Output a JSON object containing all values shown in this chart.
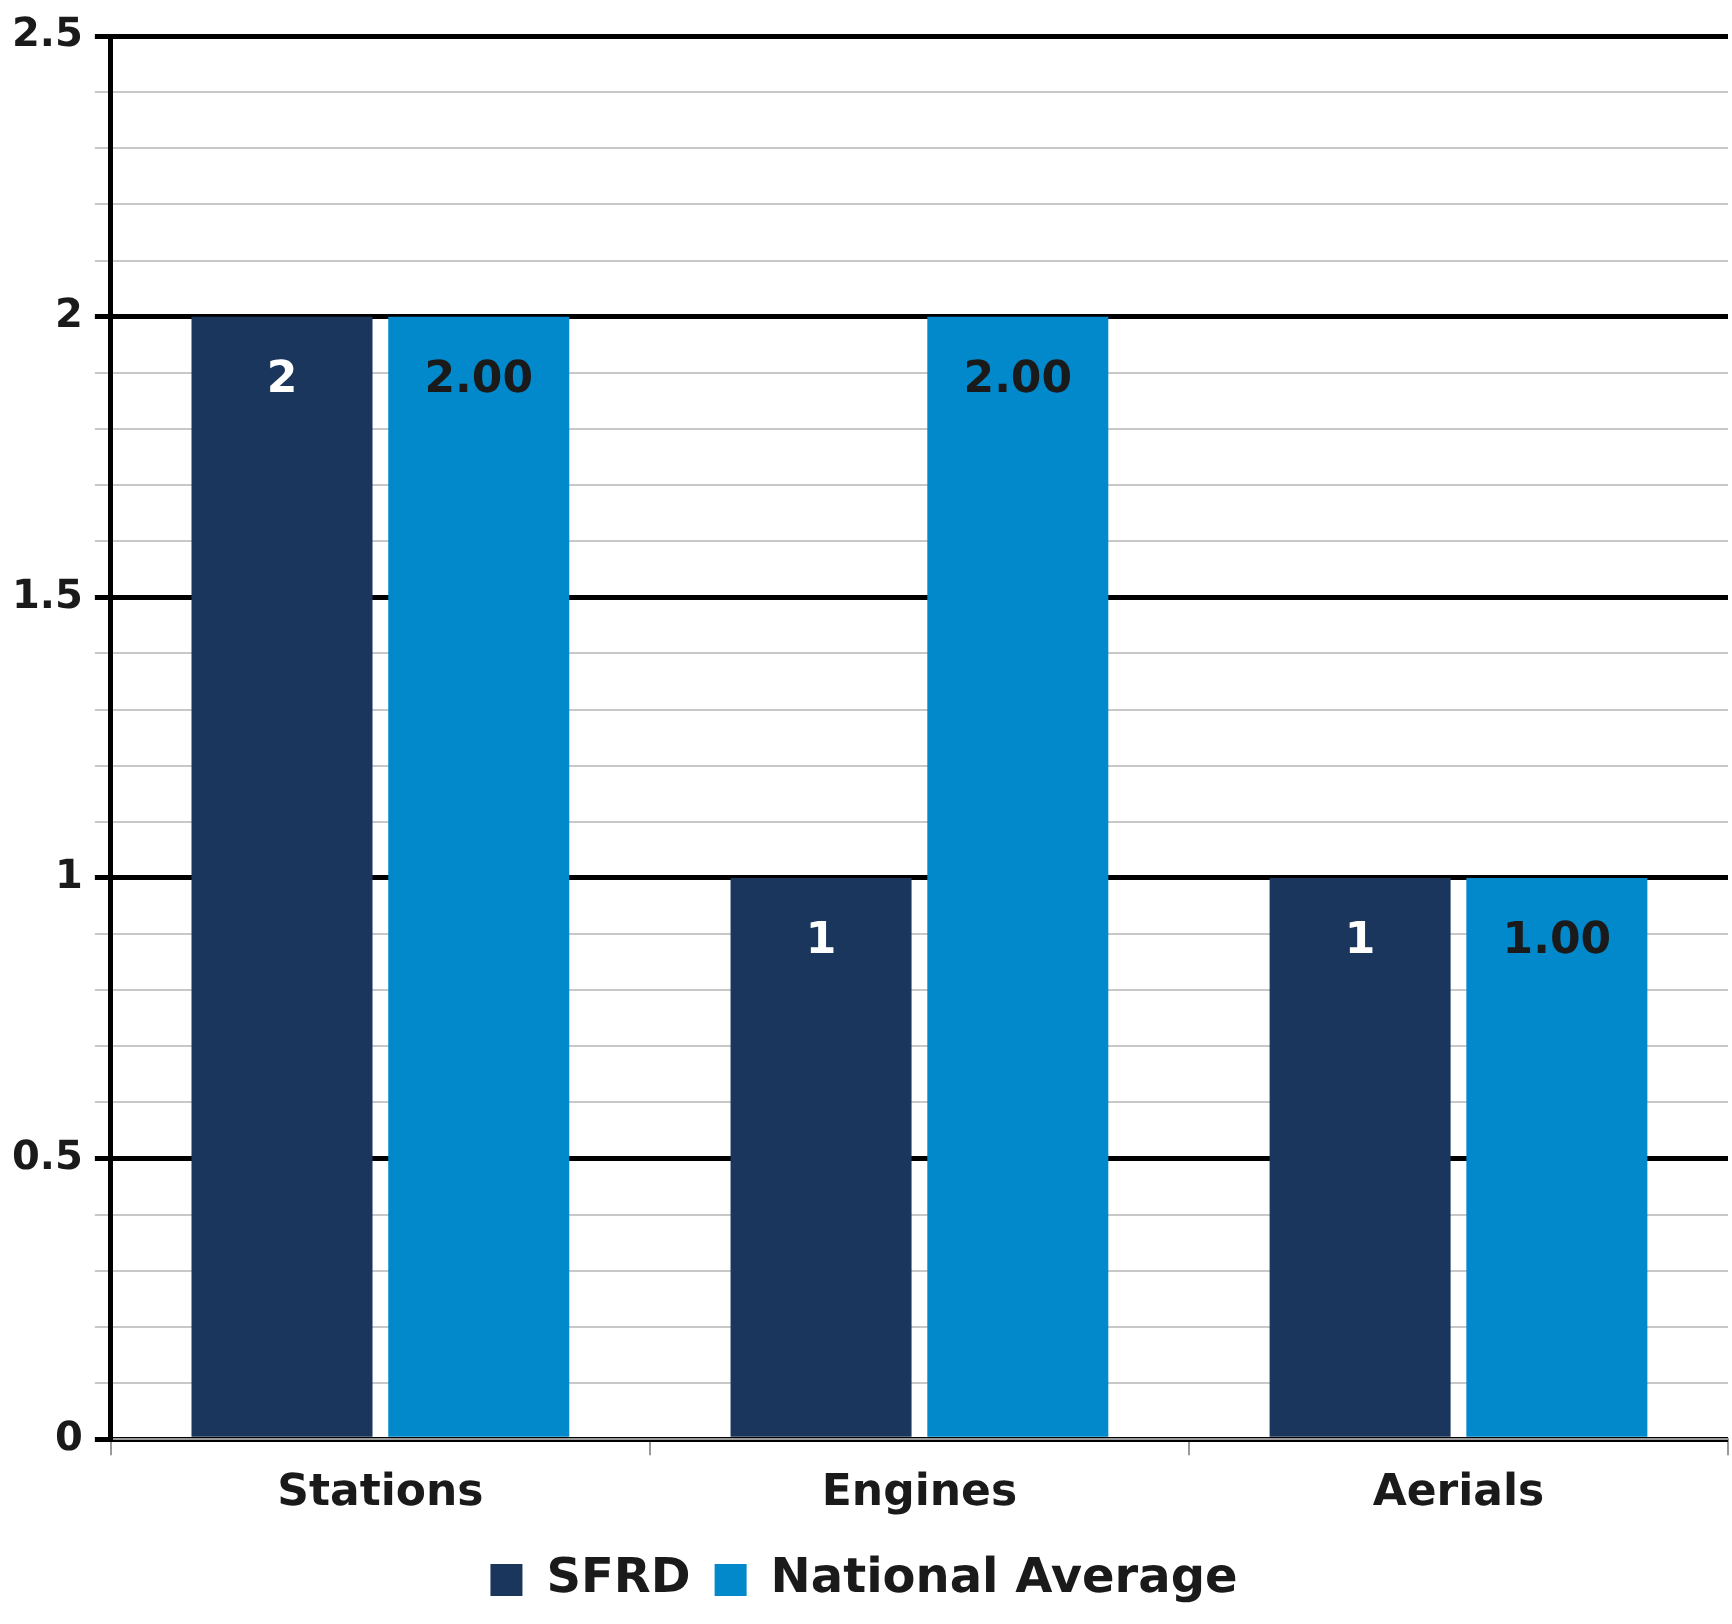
{
  "chart_data": {
    "type": "bar",
    "categories": [
      "Stations",
      "Engines",
      "Aerials"
    ],
    "series": [
      {
        "name": "SFRD",
        "color": "#1a365d",
        "values": [
          2,
          1,
          1
        ],
        "value_labels": [
          "2",
          "1",
          "1"
        ]
      },
      {
        "name": "National Average",
        "color": "#0289cc",
        "values": [
          2,
          2,
          1
        ],
        "value_labels": [
          "2.00",
          "2.00",
          "1.00"
        ]
      }
    ],
    "ylim": [
      0,
      2.5
    ],
    "yticks": [
      0,
      {
        "value": 0.1,
        "label": null
      },
      {
        "value": 0.2,
        "label": null
      },
      {
        "value": 0.3,
        "label": null
      },
      {
        "value": 0.4,
        "label": null
      },
      0.5,
      {
        "value": 0.6,
        "label": null
      },
      {
        "value": 0.7,
        "label": null
      },
      {
        "value": 0.8,
        "label": null
      },
      {
        "value": 0.9,
        "label": null
      },
      1,
      {
        "value": 1.1,
        "label": null
      },
      {
        "value": 1.2,
        "label": null
      },
      {
        "value": 1.3,
        "label": null
      },
      {
        "value": 1.4,
        "label": null
      },
      1.5,
      {
        "value": 1.6,
        "label": null
      },
      {
        "value": 1.7,
        "label": null
      },
      {
        "value": 1.8,
        "label": null
      },
      {
        "value": 1.9,
        "label": null
      },
      2,
      {
        "value": 2.1,
        "label": null
      },
      {
        "value": 2.2,
        "label": null
      },
      {
        "value": 2.3,
        "label": null
      },
      {
        "value": 2.4,
        "label": null
      },
      2.5
    ],
    "grid": "y",
    "legend": "bottom"
  }
}
